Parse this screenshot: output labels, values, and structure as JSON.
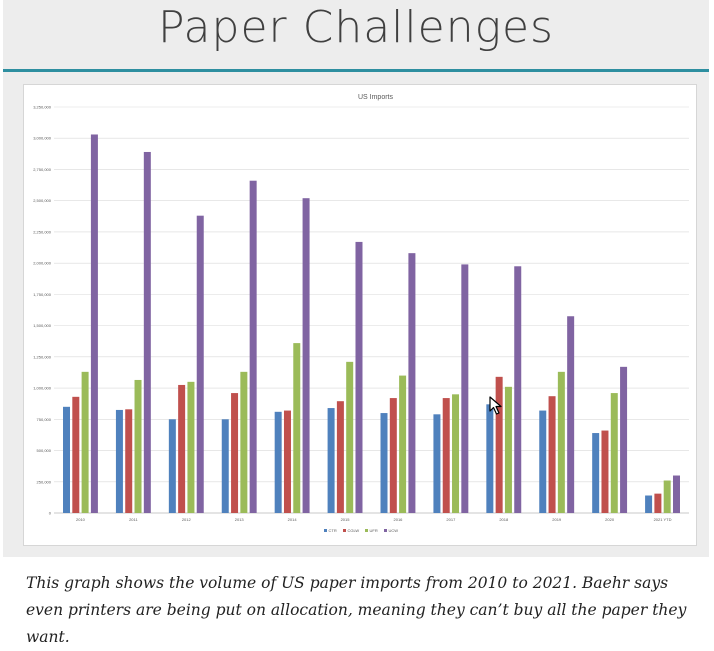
{
  "slide": {
    "title": "Paper Challenges",
    "accent_color": "#2e8fa0",
    "background": "#ededed"
  },
  "caption": "This graph shows the volume of US paper imports from 2010 to 2021. Baehr says even printers are being put on allocation, meaning they can’t buy all the paper they want.",
  "chart_data": {
    "type": "bar",
    "title": "US Imports",
    "xlabel": "",
    "ylabel": "",
    "categories": [
      "2010",
      "2011",
      "2012",
      "2013",
      "2014",
      "2015",
      "2016",
      "2017",
      "2018",
      "2019",
      "2020",
      "2021 YTD"
    ],
    "series": [
      {
        "name": "CTR",
        "color": "#4f81bd",
        "values": [
          850000,
          825000,
          750000,
          750000,
          810000,
          840000,
          800000,
          790000,
          870000,
          820000,
          640000,
          140000
        ]
      },
      {
        "name": "CGLW",
        "color": "#c0504d",
        "values": [
          930000,
          830000,
          1025000,
          960000,
          820000,
          895000,
          920000,
          920000,
          1090000,
          935000,
          660000,
          155000
        ]
      },
      {
        "name": "UFR",
        "color": "#9bbb59",
        "values": [
          1130000,
          1065000,
          1050000,
          1130000,
          1360000,
          1210000,
          1100000,
          950000,
          1010000,
          1130000,
          960000,
          260000
        ]
      },
      {
        "name": "UCW",
        "color": "#8064a2",
        "values": [
          3030000,
          2890000,
          2380000,
          2660000,
          2520000,
          2170000,
          2080000,
          1990000,
          1975000,
          1575000,
          1170000,
          300000
        ]
      }
    ],
    "ylim": [
      0,
      3250000
    ],
    "yticks": [
      0,
      250000,
      500000,
      750000,
      1000000,
      1250000,
      1500000,
      1750000,
      2000000,
      2250000,
      2500000,
      2750000,
      3000000,
      3250000
    ],
    "ytick_labels": [
      "0",
      "250,000",
      "500,000",
      "750,000",
      "1,000,000",
      "1,250,000",
      "1,500,000",
      "1,750,000",
      "2,000,000",
      "2,250,000",
      "2,500,000",
      "2,750,000",
      "3,000,000",
      "3,250,000"
    ],
    "grid": true,
    "legend_position": "bottom"
  }
}
